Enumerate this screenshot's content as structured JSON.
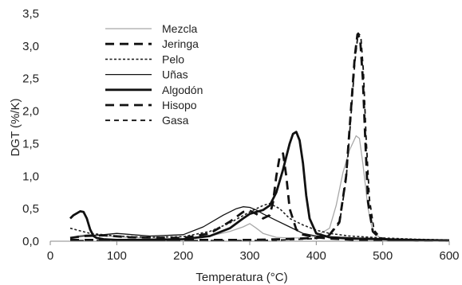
{
  "chart_data": {
    "type": "line",
    "title": "",
    "xlabel": "Temperatura (°C)",
    "ylabel": "DGT (%/K)",
    "xlim": [
      0,
      600
    ],
    "ylim": [
      0,
      3.5
    ],
    "xticks": [
      0,
      100,
      200,
      300,
      400,
      500,
      600
    ],
    "yticks": [
      "0,0",
      "0,5",
      "1,0",
      "1,5",
      "2,0",
      "2,5",
      "3,0",
      "3,5"
    ],
    "ytick_values": [
      0,
      0.5,
      1.0,
      1.5,
      2.0,
      2.5,
      3.0,
      3.5
    ],
    "grid": false,
    "legend_position": "top-left",
    "series": [
      {
        "name": "Mezcla",
        "color": "#a8a8a8",
        "style": "solid-thin",
        "x": [
          30,
          45,
          60,
          75,
          100,
          150,
          200,
          240,
          270,
          290,
          300,
          310,
          320,
          340,
          360,
          380,
          400,
          420,
          430,
          440,
          450,
          460,
          465,
          470,
          478,
          485,
          495,
          510,
          550,
          600
        ],
        "y": [
          0.05,
          0.09,
          0.1,
          0.09,
          0.07,
          0.04,
          0.04,
          0.08,
          0.15,
          0.22,
          0.27,
          0.2,
          0.12,
          0.06,
          0.05,
          0.05,
          0.08,
          0.2,
          0.55,
          1.05,
          1.4,
          1.62,
          1.58,
          1.2,
          0.5,
          0.15,
          0.06,
          0.03,
          0.02,
          0.01
        ]
      },
      {
        "name": "Jeringa",
        "color": "#111111",
        "style": "dash-long-thick",
        "x": [
          30,
          50,
          80,
          120,
          200,
          240,
          270,
          290,
          300,
          310,
          320,
          330,
          335,
          340,
          345,
          350,
          355,
          360,
          370,
          380,
          400,
          420,
          440,
          460,
          480,
          500,
          600
        ],
        "y": [
          0.05,
          0.08,
          0.09,
          0.06,
          0.05,
          0.12,
          0.3,
          0.45,
          0.47,
          0.42,
          0.35,
          0.4,
          0.6,
          1.0,
          1.3,
          1.35,
          1.0,
          0.5,
          0.18,
          0.1,
          0.06,
          0.04,
          0.03,
          0.02,
          0.02,
          0.02,
          0.01
        ]
      },
      {
        "name": "Pelo",
        "color": "#222222",
        "style": "dot",
        "x": [
          30,
          60,
          100,
          150,
          200,
          240,
          270,
          300,
          320,
          330,
          345,
          360,
          380,
          400,
          420,
          450,
          500,
          550,
          600
        ],
        "y": [
          0.2,
          0.12,
          0.08,
          0.06,
          0.07,
          0.15,
          0.28,
          0.45,
          0.55,
          0.58,
          0.5,
          0.35,
          0.25,
          0.17,
          0.12,
          0.08,
          0.05,
          0.03,
          0.02
        ]
      },
      {
        "name": "Uñas",
        "color": "#111111",
        "style": "solid-thin",
        "x": [
          30,
          50,
          80,
          100,
          150,
          200,
          230,
          260,
          280,
          290,
          300,
          310,
          320,
          340,
          360,
          380,
          400,
          420,
          440,
          460,
          500,
          550,
          600
        ],
        "y": [
          0.05,
          0.08,
          0.1,
          0.12,
          0.08,
          0.1,
          0.22,
          0.4,
          0.5,
          0.53,
          0.52,
          0.48,
          0.42,
          0.32,
          0.22,
          0.12,
          0.08,
          0.07,
          0.06,
          0.05,
          0.04,
          0.02,
          0.02
        ]
      },
      {
        "name": "Algodón",
        "color": "#111111",
        "style": "solid-thick",
        "x": [
          30,
          35,
          40,
          45,
          50,
          55,
          60,
          65,
          70,
          80,
          100,
          150,
          200,
          240,
          270,
          290,
          300,
          310,
          320,
          330,
          340,
          350,
          360,
          365,
          370,
          375,
          380,
          385,
          390,
          400,
          420,
          450,
          500,
          550,
          600
        ],
        "y": [
          0.35,
          0.4,
          0.43,
          0.46,
          0.45,
          0.35,
          0.18,
          0.08,
          0.05,
          0.03,
          0.02,
          0.02,
          0.03,
          0.08,
          0.2,
          0.35,
          0.42,
          0.45,
          0.48,
          0.55,
          0.75,
          1.1,
          1.5,
          1.65,
          1.68,
          1.55,
          1.2,
          0.7,
          0.35,
          0.12,
          0.06,
          0.04,
          0.03,
          0.02,
          0.01
        ]
      },
      {
        "name": "Hisopo",
        "color": "#111111",
        "style": "dash-long-thick",
        "x": [
          30,
          60,
          100,
          150,
          200,
          300,
          350,
          400,
          420,
          435,
          445,
          452,
          458,
          462,
          466,
          470,
          474,
          478,
          485,
          495,
          510,
          550,
          600
        ],
        "y": [
          0.02,
          0.02,
          0.02,
          0.02,
          0.02,
          0.02,
          0.03,
          0.05,
          0.1,
          0.3,
          1.0,
          2.0,
          2.85,
          3.18,
          3.12,
          2.5,
          1.5,
          0.6,
          0.15,
          0.05,
          0.02,
          0.01,
          0.01
        ]
      },
      {
        "name": "Gasa",
        "color": "#111111",
        "style": "dash-medium",
        "x": [
          30,
          60,
          100,
          150,
          200,
          300,
          350,
          400,
          420,
          435,
          445,
          452,
          458,
          463,
          467,
          471,
          475,
          480,
          487,
          497,
          510,
          550,
          600
        ],
        "y": [
          0.01,
          0.01,
          0.01,
          0.01,
          0.01,
          0.01,
          0.02,
          0.04,
          0.09,
          0.28,
          0.95,
          1.9,
          2.75,
          3.2,
          3.15,
          2.6,
          1.6,
          0.65,
          0.17,
          0.05,
          0.02,
          0.01,
          0.01
        ]
      }
    ]
  }
}
